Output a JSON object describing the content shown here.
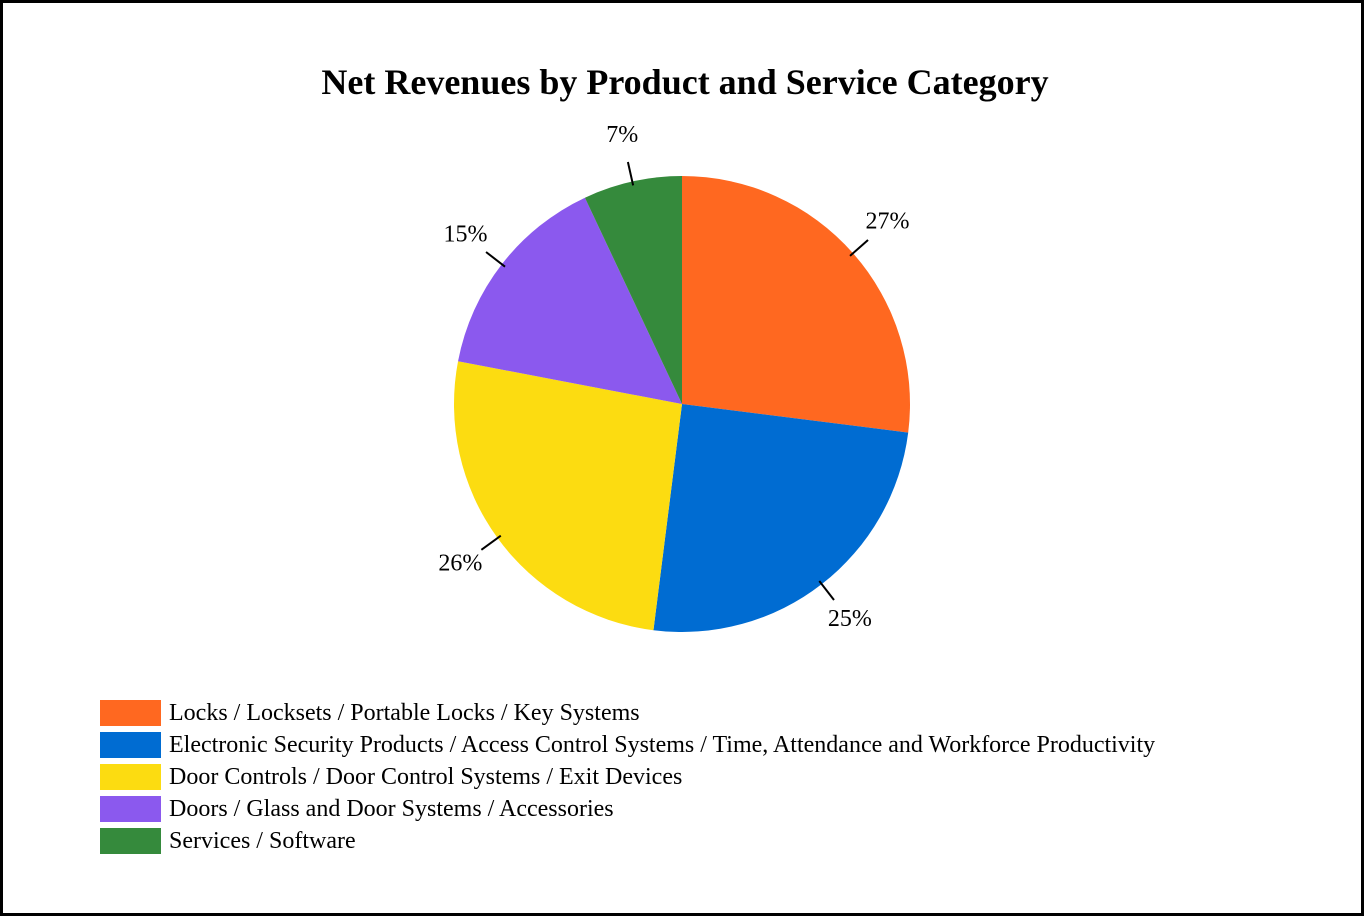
{
  "chart_data": {
    "type": "pie",
    "title": "Net Revenues by Product and Service Category",
    "slices": [
      {
        "name": "Locks / Locksets / Portable Locks / Key Systems",
        "value": 27,
        "label": "27%",
        "color": "#FF6820"
      },
      {
        "name": "Electronic Security Products / Access Control Systems / Time, Attendance and Workforce Productivity",
        "value": 25,
        "label": "25%",
        "color": "#006CD2"
      },
      {
        "name": "Door Controls / Door Control Systems / Exit Devices",
        "value": 26,
        "label": "26%",
        "color": "#FCDC11"
      },
      {
        "name": "Doors / Glass and Door Systems / Accessories",
        "value": 15,
        "label": "15%",
        "color": "#8B59EE"
      },
      {
        "name": "Services / Software",
        "value": 7,
        "label": "7%",
        "color": "#358A3C"
      }
    ],
    "legend_position": "bottom-left"
  }
}
